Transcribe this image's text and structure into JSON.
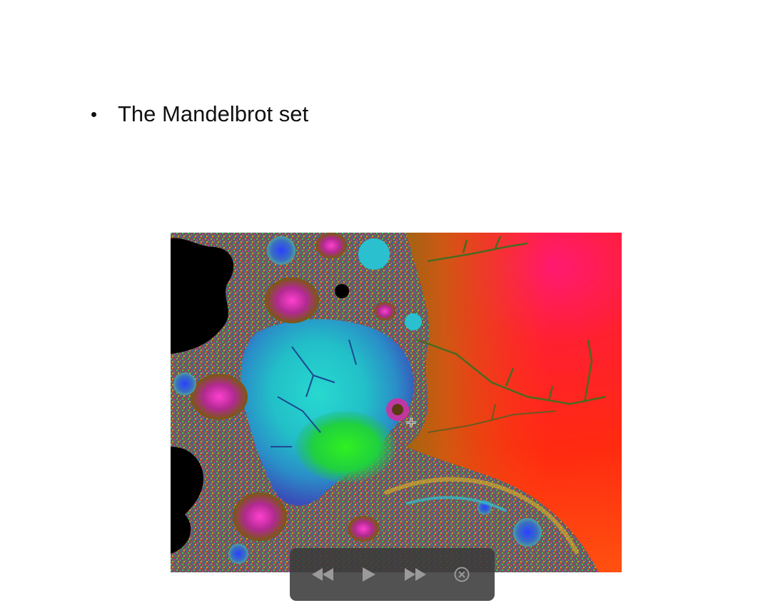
{
  "slide": {
    "bullet_text": "The Mandelbrot set"
  },
  "image": {
    "subject": "mandelbrot-fractal-zoom",
    "colors": {
      "set_interior": "#000000",
      "background_hot": "#ff2a10",
      "teal": "#1fc8c0",
      "green": "#22e81e",
      "magenta": "#d81fb0",
      "pink_corner": "#ff1a6a",
      "orange": "#ff7a10"
    }
  },
  "player": {
    "background": "#3a3a3a",
    "icon_color": "#9a9a9a",
    "controls": [
      {
        "name": "rewind-icon"
      },
      {
        "name": "play-icon"
      },
      {
        "name": "fast-forward-icon"
      },
      {
        "name": "close-icon"
      }
    ]
  }
}
